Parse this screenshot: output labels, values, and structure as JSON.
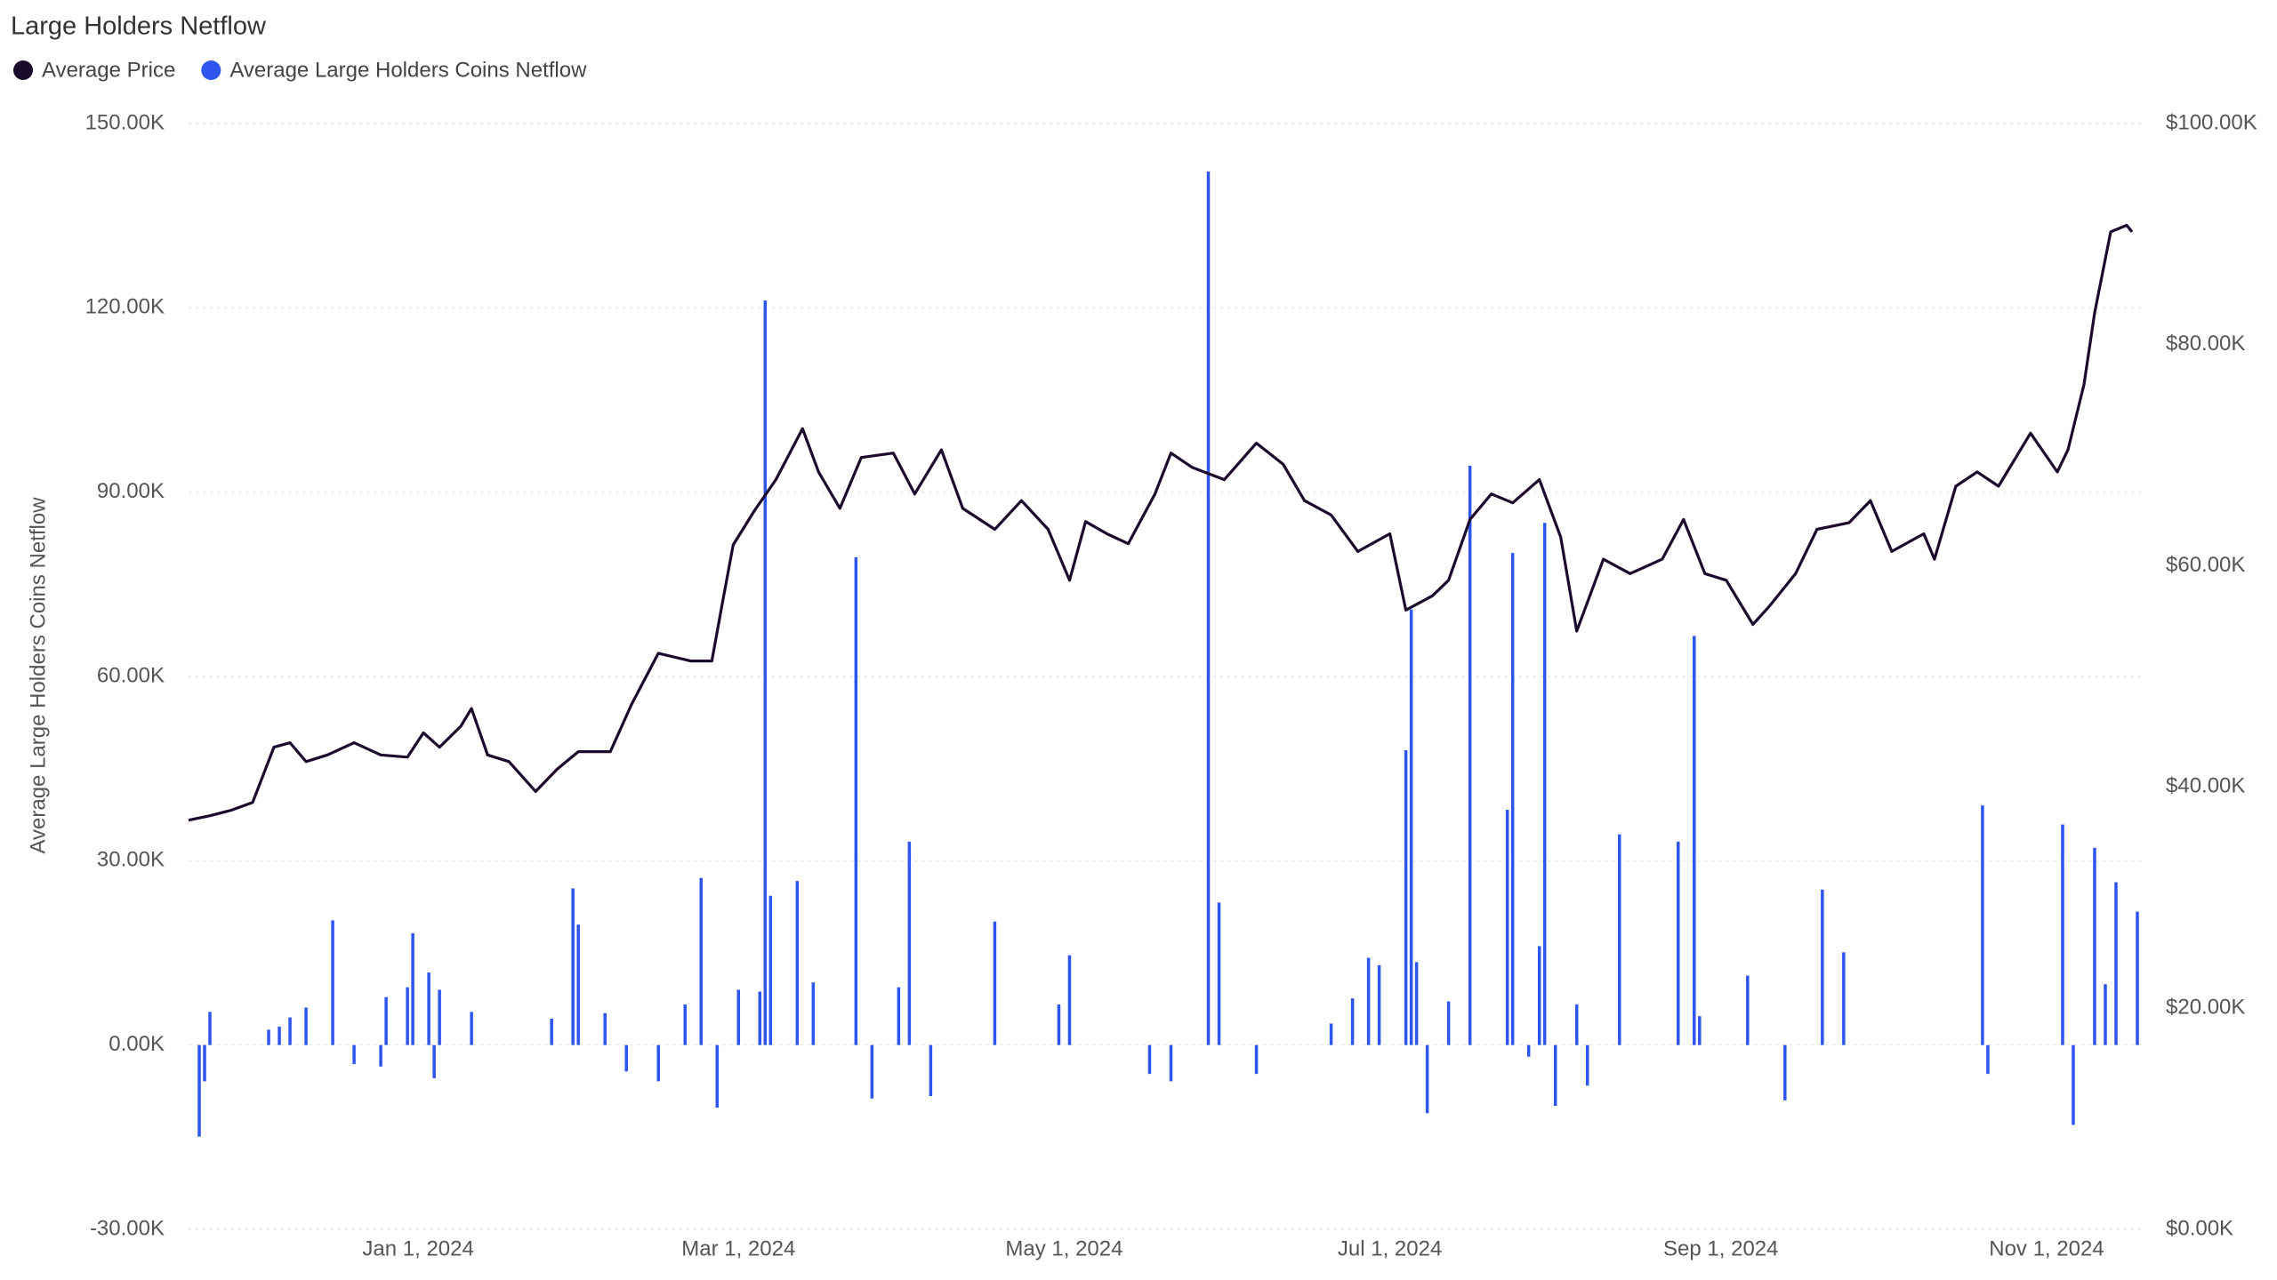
{
  "chart_data": {
    "type": "bar",
    "title": "Large Holders Netflow",
    "y_label": "Average Large Holders Coins Netflow",
    "legend": "top-left",
    "grid": true,
    "xlim": [
      "2023-11-19",
      "2024-11-19"
    ],
    "xticks": [
      {
        "value": "2024-01-01",
        "label": "Jan 1, 2024"
      },
      {
        "value": "2024-03-01",
        "label": "Mar 1, 2024"
      },
      {
        "value": "2024-05-01",
        "label": "May 1, 2024"
      },
      {
        "value": "2024-07-01",
        "label": "Jul 1, 2024"
      },
      {
        "value": "2024-09-01",
        "label": "Sep 1, 2024"
      },
      {
        "value": "2024-11-01",
        "label": "Nov 1, 2024"
      }
    ],
    "ylim": [
      -30000,
      150000
    ],
    "yticks": [
      {
        "value": -30000,
        "label": "-30.00K"
      },
      {
        "value": 0,
        "label": "0.00K"
      },
      {
        "value": 30000,
        "label": "30.00K"
      },
      {
        "value": 60000,
        "label": "60.00K"
      },
      {
        "value": 90000,
        "label": "90.00K"
      },
      {
        "value": 120000,
        "label": "120.00K"
      },
      {
        "value": 150000,
        "label": "150.00K"
      }
    ],
    "y2lim": [
      0,
      100000
    ],
    "y2ticks": [
      {
        "value": 0,
        "label": "$0.00K"
      },
      {
        "value": 20000,
        "label": "$20.00K"
      },
      {
        "value": 40000,
        "label": "$40.00K"
      },
      {
        "value": 60000,
        "label": "$60.00K"
      },
      {
        "value": 80000,
        "label": "$80.00K"
      },
      {
        "value": 100000,
        "label": "$100.00K"
      }
    ],
    "series": [
      {
        "name": "Average Price",
        "type": "line",
        "axis": "y2",
        "color": "#1c0a2c",
        "x": [
          "2023-11-19",
          "2023-11-23",
          "2023-11-27",
          "2023-12-01",
          "2023-12-05",
          "2023-12-08",
          "2023-12-11",
          "2023-12-15",
          "2023-12-20",
          "2023-12-25",
          "2023-12-30",
          "2024-01-02",
          "2024-01-05",
          "2024-01-09",
          "2024-01-11",
          "2024-01-14",
          "2024-01-18",
          "2024-01-23",
          "2024-01-27",
          "2024-01-31",
          "2024-02-06",
          "2024-02-10",
          "2024-02-15",
          "2024-02-21",
          "2024-02-25",
          "2024-02-27",
          "2024-02-29",
          "2024-03-04",
          "2024-03-08",
          "2024-03-13",
          "2024-03-16",
          "2024-03-20",
          "2024-03-24",
          "2024-03-30",
          "2024-04-03",
          "2024-04-08",
          "2024-04-12",
          "2024-04-18",
          "2024-04-23",
          "2024-04-28",
          "2024-05-02",
          "2024-05-05",
          "2024-05-09",
          "2024-05-13",
          "2024-05-18",
          "2024-05-21",
          "2024-05-25",
          "2024-05-31",
          "2024-06-06",
          "2024-06-11",
          "2024-06-15",
          "2024-06-20",
          "2024-06-25",
          "2024-07-01",
          "2024-07-04",
          "2024-07-09",
          "2024-07-12",
          "2024-07-16",
          "2024-07-20",
          "2024-07-24",
          "2024-07-29",
          "2024-08-02",
          "2024-08-05",
          "2024-08-10",
          "2024-08-15",
          "2024-08-21",
          "2024-08-25",
          "2024-08-29",
          "2024-09-02",
          "2024-09-07",
          "2024-09-10",
          "2024-09-15",
          "2024-09-19",
          "2024-09-25",
          "2024-09-29",
          "2024-10-03",
          "2024-10-09",
          "2024-10-11",
          "2024-10-15",
          "2024-10-19",
          "2024-10-23",
          "2024-10-29",
          "2024-11-03",
          "2024-11-05",
          "2024-11-08",
          "2024-11-10",
          "2024-11-13",
          "2024-11-16",
          "2024-11-17"
        ],
        "values": [
          37000,
          37400,
          37900,
          38600,
          43600,
          44000,
          42300,
          42900,
          44000,
          42900,
          42700,
          44900,
          43600,
          45500,
          47100,
          42900,
          42300,
          39600,
          41600,
          43200,
          43200,
          47500,
          52100,
          51400,
          51400,
          56700,
          61900,
          65000,
          67800,
          72400,
          68500,
          65200,
          69800,
          70200,
          66500,
          70500,
          65200,
          63300,
          65900,
          63300,
          58700,
          64000,
          62900,
          62000,
          66500,
          70200,
          68900,
          67800,
          71100,
          69200,
          65900,
          64600,
          61300,
          62900,
          56000,
          57300,
          58700,
          64200,
          66500,
          65700,
          67800,
          62600,
          54100,
          60600,
          59300,
          60600,
          64200,
          59300,
          58700,
          54700,
          56300,
          59300,
          63300,
          63900,
          65900,
          61300,
          62900,
          60600,
          67200,
          68500,
          67200,
          72000,
          68500,
          70500,
          76400,
          82900,
          90200,
          90800,
          90200
        ]
      },
      {
        "name": "Average Large Holders Coins Netflow",
        "type": "bar",
        "color": "#2e55ee",
        "x": [
          "2023-11-21",
          "2023-11-22",
          "2023-11-23",
          "2023-12-04",
          "2023-12-06",
          "2023-12-08",
          "2023-12-11",
          "2023-12-16",
          "2023-12-20",
          "2023-12-25",
          "2023-12-26",
          "2023-12-30",
          "2023-12-31",
          "2024-01-03",
          "2024-01-04",
          "2024-01-05",
          "2024-01-11",
          "2024-01-26",
          "2024-01-30",
          "2024-01-31",
          "2024-02-05",
          "2024-02-09",
          "2024-02-15",
          "2024-02-20",
          "2024-02-23",
          "2024-02-26",
          "2024-03-01",
          "2024-03-05",
          "2024-03-06",
          "2024-03-07",
          "2024-03-12",
          "2024-03-15",
          "2024-03-23",
          "2024-03-26",
          "2024-03-31",
          "2024-04-02",
          "2024-04-06",
          "2024-04-18",
          "2024-04-30",
          "2024-05-02",
          "2024-05-17",
          "2024-05-21",
          "2024-05-28",
          "2024-05-30",
          "2024-06-06",
          "2024-06-20",
          "2024-06-24",
          "2024-06-27",
          "2024-06-29",
          "2024-07-04",
          "2024-07-05",
          "2024-07-06",
          "2024-07-08",
          "2024-07-12",
          "2024-07-16",
          "2024-07-23",
          "2024-07-24",
          "2024-07-27",
          "2024-07-29",
          "2024-07-30",
          "2024-08-01",
          "2024-08-05",
          "2024-08-07",
          "2024-08-13",
          "2024-08-24",
          "2024-08-27",
          "2024-08-28",
          "2024-09-06",
          "2024-09-13",
          "2024-09-20",
          "2024-09-24",
          "2024-10-20",
          "2024-10-21",
          "2024-11-04",
          "2024-11-06",
          "2024-11-10",
          "2024-11-12",
          "2024-11-14",
          "2024-11-18"
        ],
        "values": [
          -14900,
          -5900,
          5400,
          2500,
          3000,
          4500,
          6100,
          20300,
          -3100,
          -3500,
          7800,
          9400,
          18200,
          11800,
          -5400,
          9000,
          5400,
          4300,
          25500,
          19600,
          5200,
          -4300,
          -5900,
          6600,
          27200,
          -10200,
          9000,
          8700,
          121200,
          24300,
          26700,
          10200,
          79400,
          -8700,
          9400,
          33100,
          -8300,
          20100,
          6600,
          14600,
          -4700,
          -5900,
          142200,
          23200,
          -4700,
          3500,
          7600,
          14200,
          13000,
          48000,
          70900,
          13500,
          -11100,
          7100,
          94300,
          38300,
          80100,
          -1900,
          16100,
          85000,
          -9900,
          6600,
          -6600,
          34300,
          33100,
          66600,
          4700,
          11300,
          -9000,
          25300,
          15100,
          39000,
          -4700,
          35900,
          -13000,
          32100,
          9900,
          26500,
          21700
        ]
      }
    ]
  }
}
